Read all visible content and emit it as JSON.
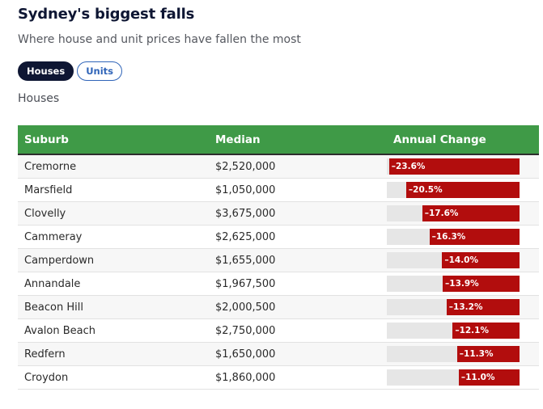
{
  "header": {
    "title": "Sydney's biggest falls",
    "subtitle": "Where house and unit prices have fallen the most"
  },
  "tabs": [
    {
      "label": "Houses",
      "active": true
    },
    {
      "label": "Units",
      "active": false
    }
  ],
  "section_label": "Houses",
  "colors": {
    "header_bg": "#3f9a47",
    "bar": "#b20d0d",
    "bar_track": "#e6e6e6",
    "active_tab": "#0e1633",
    "inactive_tab_border": "#2f64b8"
  },
  "chart_data": {
    "type": "table",
    "columns": [
      "Suburb",
      "Median",
      "Annual Change"
    ],
    "rows": [
      {
        "suburb": "Cremorne",
        "median": "$2,520,000",
        "change_label": "–23.6%",
        "change": -23.6
      },
      {
        "suburb": "Marsfield",
        "median": "$1,050,000",
        "change_label": "–20.5%",
        "change": -20.5
      },
      {
        "suburb": "Clovelly",
        "median": "$3,675,000",
        "change_label": "–17.6%",
        "change": -17.6
      },
      {
        "suburb": "Cammeray",
        "median": "$2,625,000",
        "change_label": "–16.3%",
        "change": -16.3
      },
      {
        "suburb": "Camperdown",
        "median": "$1,655,000",
        "change_label": "–14.0%",
        "change": -14.0
      },
      {
        "suburb": "Annandale",
        "median": "$1,967,500",
        "change_label": "–13.9%",
        "change": -13.9
      },
      {
        "suburb": "Beacon Hill",
        "median": "$2,000,500",
        "change_label": "–13.2%",
        "change": -13.2
      },
      {
        "suburb": "Avalon Beach",
        "median": "$2,750,000",
        "change_label": "–12.1%",
        "change": -12.1
      },
      {
        "suburb": "Redfern",
        "median": "$1,650,000",
        "change_label": "–11.3%",
        "change": -11.3
      },
      {
        "suburb": "Croydon",
        "median": "$1,860,000",
        "change_label": "–11.0%",
        "change": -11.0
      }
    ]
  }
}
